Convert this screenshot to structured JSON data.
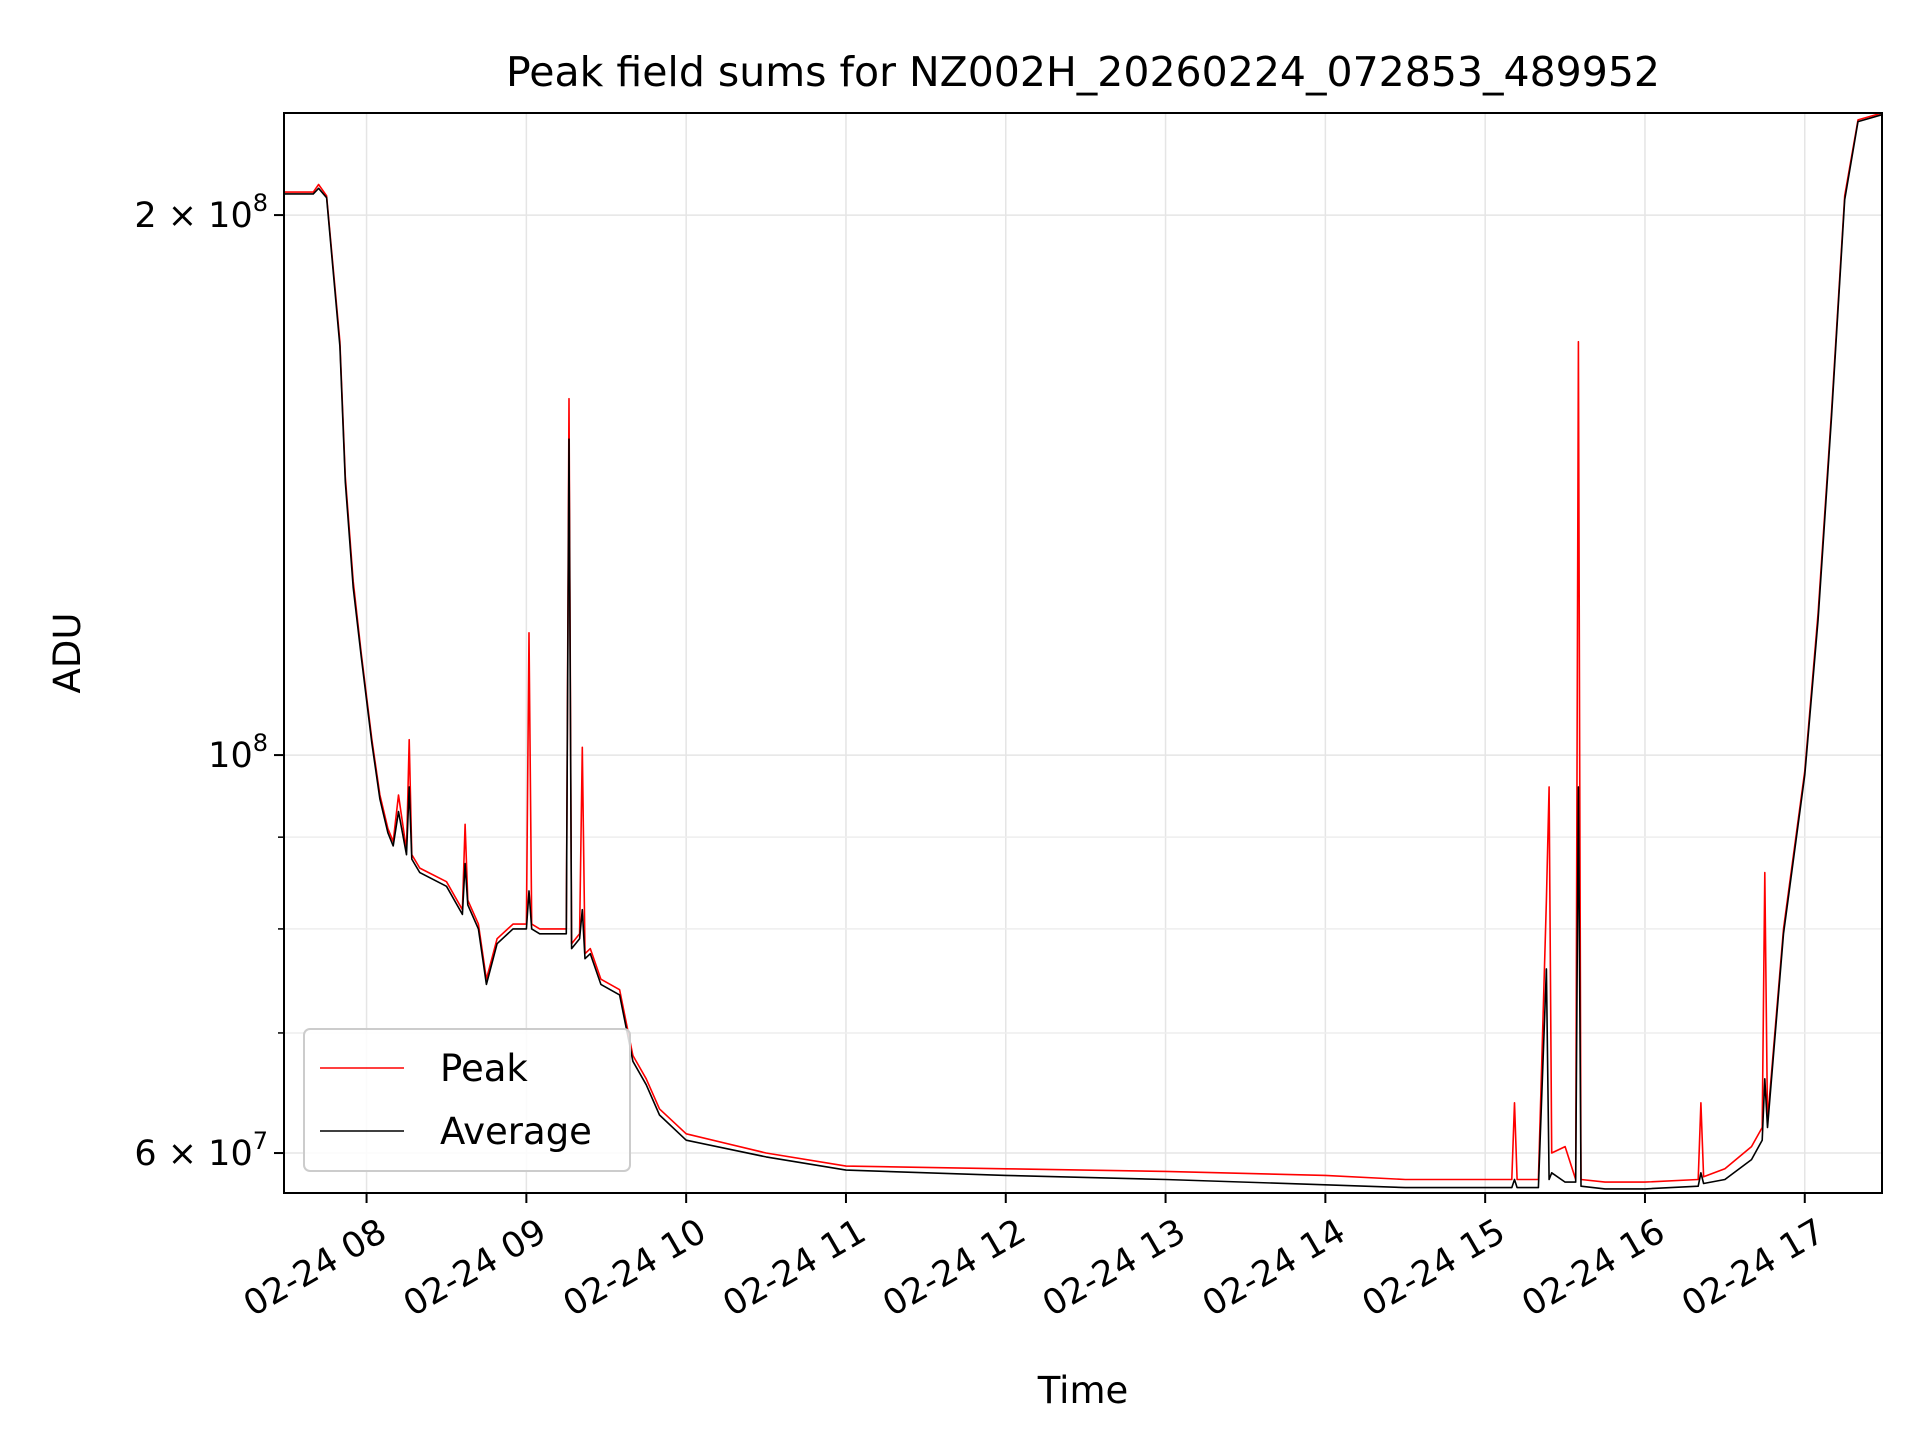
{
  "chart_data": {
    "type": "line",
    "title": "Peak field sums for NZ002H_20260224_072853_489952",
    "xlabel": "Time",
    "ylabel": "ADU",
    "yscale": "log",
    "xlim": [
      "2026-02-24 07:29",
      "2026-02-24 17:29"
    ],
    "ylim": [
      57000000,
      228000000
    ],
    "grid": true,
    "legend_position": "lower-left",
    "x_ticks": [
      "2026-02-24 08:00",
      "2026-02-24 09:00",
      "2026-02-24 10:00",
      "2026-02-24 11:00",
      "2026-02-24 12:00",
      "2026-02-24 13:00",
      "2026-02-24 14:00",
      "2026-02-24 15:00",
      "2026-02-24 16:00",
      "2026-02-24 17:00"
    ],
    "x_tick_labels": [
      "02-24 08",
      "02-24 09",
      "02-24 10",
      "02-24 11",
      "02-24 12",
      "02-24 13",
      "02-24 14",
      "02-24 15",
      "02-24 16",
      "02-24 17"
    ],
    "y_ticks": [
      {
        "value": 200000000,
        "mantissa": "2",
        "exponent": "8"
      },
      {
        "value": 100000000,
        "mantissa": "",
        "exponent": "8"
      },
      {
        "value": 60000000,
        "mantissa": "6",
        "exponent": "7"
      }
    ],
    "y_minor_ticks": [
      70000000,
      80000000,
      90000000
    ],
    "series": [
      {
        "name": "Peak",
        "color": "#ff0000",
        "x": [
          "2026-02-24 07:29",
          "2026-02-24 07:40",
          "2026-02-24 07:42",
          "2026-02-24 07:45",
          "2026-02-24 07:50",
          "2026-02-24 07:52",
          "2026-02-24 07:55",
          "2026-02-24 07:58",
          "2026-02-24 08:02",
          "2026-02-24 08:05",
          "2026-02-24 08:08",
          "2026-02-24 08:10",
          "2026-02-24 08:12",
          "2026-02-24 08:15",
          "2026-02-24 08:16",
          "2026-02-24 08:17",
          "2026-02-24 08:20",
          "2026-02-24 08:30",
          "2026-02-24 08:36",
          "2026-02-24 08:37",
          "2026-02-24 08:38",
          "2026-02-24 08:42",
          "2026-02-24 08:45",
          "2026-02-24 08:49",
          "2026-02-24 08:55",
          "2026-02-24 09:00",
          "2026-02-24 09:01",
          "2026-02-24 09:02",
          "2026-02-24 09:05",
          "2026-02-24 09:10",
          "2026-02-24 09:15",
          "2026-02-24 09:16",
          "2026-02-24 09:17",
          "2026-02-24 09:20",
          "2026-02-24 09:21",
          "2026-02-24 09:22",
          "2026-02-24 09:24",
          "2026-02-24 09:28",
          "2026-02-24 09:35",
          "2026-02-24 09:40",
          "2026-02-24 09:45",
          "2026-02-24 09:50",
          "2026-02-24 10:00",
          "2026-02-24 10:30",
          "2026-02-24 11:00",
          "2026-02-24 12:00",
          "2026-02-24 13:00",
          "2026-02-24 14:00",
          "2026-02-24 14:30",
          "2026-02-24 15:00",
          "2026-02-24 15:10",
          "2026-02-24 15:11",
          "2026-02-24 15:12",
          "2026-02-24 15:20",
          "2026-02-24 15:23",
          "2026-02-24 15:24",
          "2026-02-24 15:25",
          "2026-02-24 15:30",
          "2026-02-24 15:34",
          "2026-02-24 15:35",
          "2026-02-24 15:36",
          "2026-02-24 15:45",
          "2026-02-24 16:00",
          "2026-02-24 16:20",
          "2026-02-24 16:21",
          "2026-02-24 16:22",
          "2026-02-24 16:30",
          "2026-02-24 16:40",
          "2026-02-24 16:44",
          "2026-02-24 16:45",
          "2026-02-24 16:46",
          "2026-02-24 16:52",
          "2026-02-24 17:00",
          "2026-02-24 17:05",
          "2026-02-24 17:10",
          "2026-02-24 17:15",
          "2026-02-24 17:20",
          "2026-02-24 17:29"
        ],
        "y": [
          206000000,
          206000000,
          208000000,
          205000000,
          170000000,
          143000000,
          125000000,
          114000000,
          102000000,
          95000000,
          91000000,
          89500000,
          95000000,
          88500000,
          102000000,
          88000000,
          86500000,
          85000000,
          82000000,
          91500000,
          83000000,
          80500000,
          75000000,
          79000000,
          80500000,
          80500000,
          117000000,
          80500000,
          80000000,
          80000000,
          80000000,
          158000000,
          78500000,
          79500000,
          101000000,
          77500000,
          78000000,
          75000000,
          74000000,
          68000000,
          66000000,
          63500000,
          61500000,
          60000000,
          59000000,
          58800000,
          58600000,
          58300000,
          58000000,
          58000000,
          58000000,
          64000000,
          58000000,
          58000000,
          83000000,
          96000000,
          60000000,
          60500000,
          58000000,
          170000000,
          58000000,
          57800000,
          57800000,
          58000000,
          64000000,
          58200000,
          58800000,
          60500000,
          62000000,
          86000000,
          62500000,
          80000000,
          98000000,
          120000000,
          155000000,
          205000000,
          226000000,
          228000000
        ]
      },
      {
        "name": "Average",
        "color": "#000000",
        "x": [
          "2026-02-24 07:29",
          "2026-02-24 07:40",
          "2026-02-24 07:42",
          "2026-02-24 07:45",
          "2026-02-24 07:50",
          "2026-02-24 07:52",
          "2026-02-24 07:55",
          "2026-02-24 07:58",
          "2026-02-24 08:02",
          "2026-02-24 08:05",
          "2026-02-24 08:08",
          "2026-02-24 08:10",
          "2026-02-24 08:12",
          "2026-02-24 08:15",
          "2026-02-24 08:16",
          "2026-02-24 08:17",
          "2026-02-24 08:20",
          "2026-02-24 08:30",
          "2026-02-24 08:36",
          "2026-02-24 08:37",
          "2026-02-24 08:38",
          "2026-02-24 08:42",
          "2026-02-24 08:45",
          "2026-02-24 08:49",
          "2026-02-24 08:55",
          "2026-02-24 09:00",
          "2026-02-24 09:01",
          "2026-02-24 09:02",
          "2026-02-24 09:05",
          "2026-02-24 09:10",
          "2026-02-24 09:15",
          "2026-02-24 09:16",
          "2026-02-24 09:17",
          "2026-02-24 09:20",
          "2026-02-24 09:21",
          "2026-02-24 09:22",
          "2026-02-24 09:24",
          "2026-02-24 09:28",
          "2026-02-24 09:35",
          "2026-02-24 09:40",
          "2026-02-24 09:45",
          "2026-02-24 09:50",
          "2026-02-24 10:00",
          "2026-02-24 10:30",
          "2026-02-24 11:00",
          "2026-02-24 12:00",
          "2026-02-24 13:00",
          "2026-02-24 14:00",
          "2026-02-24 14:30",
          "2026-02-24 15:00",
          "2026-02-24 15:10",
          "2026-02-24 15:11",
          "2026-02-24 15:12",
          "2026-02-24 15:20",
          "2026-02-24 15:23",
          "2026-02-24 15:24",
          "2026-02-24 15:25",
          "2026-02-24 15:30",
          "2026-02-24 15:34",
          "2026-02-24 15:35",
          "2026-02-24 15:36",
          "2026-02-24 15:45",
          "2026-02-24 16:00",
          "2026-02-24 16:20",
          "2026-02-24 16:21",
          "2026-02-24 16:22",
          "2026-02-24 16:30",
          "2026-02-24 16:40",
          "2026-02-24 16:44",
          "2026-02-24 16:45",
          "2026-02-24 16:46",
          "2026-02-24 16:52",
          "2026-02-24 17:00",
          "2026-02-24 17:05",
          "2026-02-24 17:10",
          "2026-02-24 17:15",
          "2026-02-24 17:20",
          "2026-02-24 17:29"
        ],
        "y": [
          205500000,
          205500000,
          207000000,
          204500000,
          169000000,
          142000000,
          124000000,
          113500000,
          101500000,
          94500000,
          90500000,
          89000000,
          93000000,
          88000000,
          96000000,
          87500000,
          86000000,
          84500000,
          81500000,
          87000000,
          82500000,
          80000000,
          74500000,
          78500000,
          80000000,
          80000000,
          84000000,
          80000000,
          79500000,
          79500000,
          79500000,
          150000000,
          78000000,
          79000000,
          82000000,
          77000000,
          77500000,
          74500000,
          73500000,
          67500000,
          65500000,
          63000000,
          61000000,
          59700000,
          58700000,
          58300000,
          58000000,
          57600000,
          57400000,
          57400000,
          57400000,
          58000000,
          57400000,
          57400000,
          76000000,
          58000000,
          58500000,
          57800000,
          57800000,
          96000000,
          57500000,
          57300000,
          57300000,
          57500000,
          58500000,
          57700000,
          58000000,
          59500000,
          61000000,
          66000000,
          62000000,
          79500000,
          97500000,
          119000000,
          154000000,
          204000000,
          225500000,
          227500000
        ]
      }
    ]
  }
}
